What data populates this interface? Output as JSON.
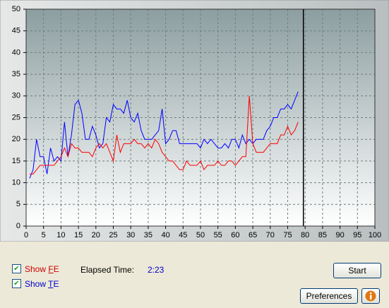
{
  "chart_data": {
    "type": "line",
    "x": [
      1,
      2,
      3,
      4,
      5,
      6,
      7,
      8,
      9,
      10,
      11,
      12,
      13,
      14,
      15,
      16,
      17,
      18,
      19,
      20,
      21,
      22,
      23,
      24,
      25,
      26,
      27,
      28,
      29,
      30,
      31,
      32,
      33,
      34,
      35,
      36,
      37,
      38,
      39,
      40,
      41,
      42,
      43,
      44,
      45,
      46,
      47,
      48,
      49,
      50,
      51,
      52,
      53,
      54,
      55,
      56,
      57,
      58,
      59,
      60,
      61,
      62,
      63,
      64,
      65,
      66,
      67,
      68,
      69,
      70,
      71,
      72,
      73,
      74,
      75,
      76,
      77,
      78
    ],
    "series": [
      {
        "color": "#0000ff",
        "values": [
          11,
          13,
          20,
          16,
          16,
          12,
          18,
          15,
          16,
          15,
          24,
          16,
          21,
          28,
          29,
          26,
          20,
          20,
          23,
          21,
          18,
          19,
          25,
          24,
          28,
          27,
          27,
          26,
          29,
          25,
          24,
          26,
          22,
          20,
          20,
          20,
          21,
          22,
          27,
          19,
          20,
          22,
          22,
          19,
          19,
          19,
          19,
          19,
          19,
          18,
          20,
          19,
          20,
          19,
          18,
          18,
          19,
          18,
          20,
          20,
          18,
          21,
          19,
          20,
          19,
          20,
          20,
          20,
          22,
          23,
          25,
          25,
          27,
          27,
          28,
          27,
          29,
          31
        ]
      },
      {
        "color": "#ff0000",
        "values": [
          12,
          12,
          13,
          14,
          14,
          14,
          14,
          14,
          15,
          16,
          18,
          16,
          19,
          18,
          18,
          17,
          17,
          17,
          16,
          18,
          19,
          18,
          19,
          17,
          15,
          21,
          17,
          19,
          19,
          19,
          20,
          19,
          19,
          18,
          19,
          18,
          20,
          19,
          17,
          16,
          15,
          15,
          14,
          13,
          13,
          15,
          14,
          14,
          14,
          15,
          13,
          14,
          14,
          14,
          15,
          14,
          14,
          15,
          15,
          14,
          15,
          16,
          16,
          30,
          19,
          17,
          17,
          17,
          18,
          19,
          19,
          19,
          21,
          21,
          23,
          21,
          22,
          24
        ]
      }
    ],
    "xlim": [
      0,
      100
    ],
    "ylim": [
      0,
      50
    ],
    "xticks": [
      0,
      5,
      10,
      15,
      20,
      25,
      30,
      35,
      40,
      45,
      50,
      55,
      60,
      65,
      70,
      75,
      80,
      85,
      90,
      95,
      100
    ],
    "yticks": [
      0,
      5,
      10,
      15,
      20,
      25,
      30,
      35,
      40,
      45,
      50
    ],
    "grid": true,
    "marker_x": 79.5
  },
  "ui": {
    "show_fe": {
      "label": "Show FE",
      "accesskey": "F",
      "checked": true,
      "color": "#cc0000"
    },
    "show_te": {
      "label": "Show TE",
      "accesskey": "T",
      "checked": true,
      "color": "#0000cc"
    },
    "elapsed_label": "Elapsed Time:",
    "elapsed_value": "2:23",
    "start_button": "Start",
    "preferences_button": "Preferences"
  }
}
